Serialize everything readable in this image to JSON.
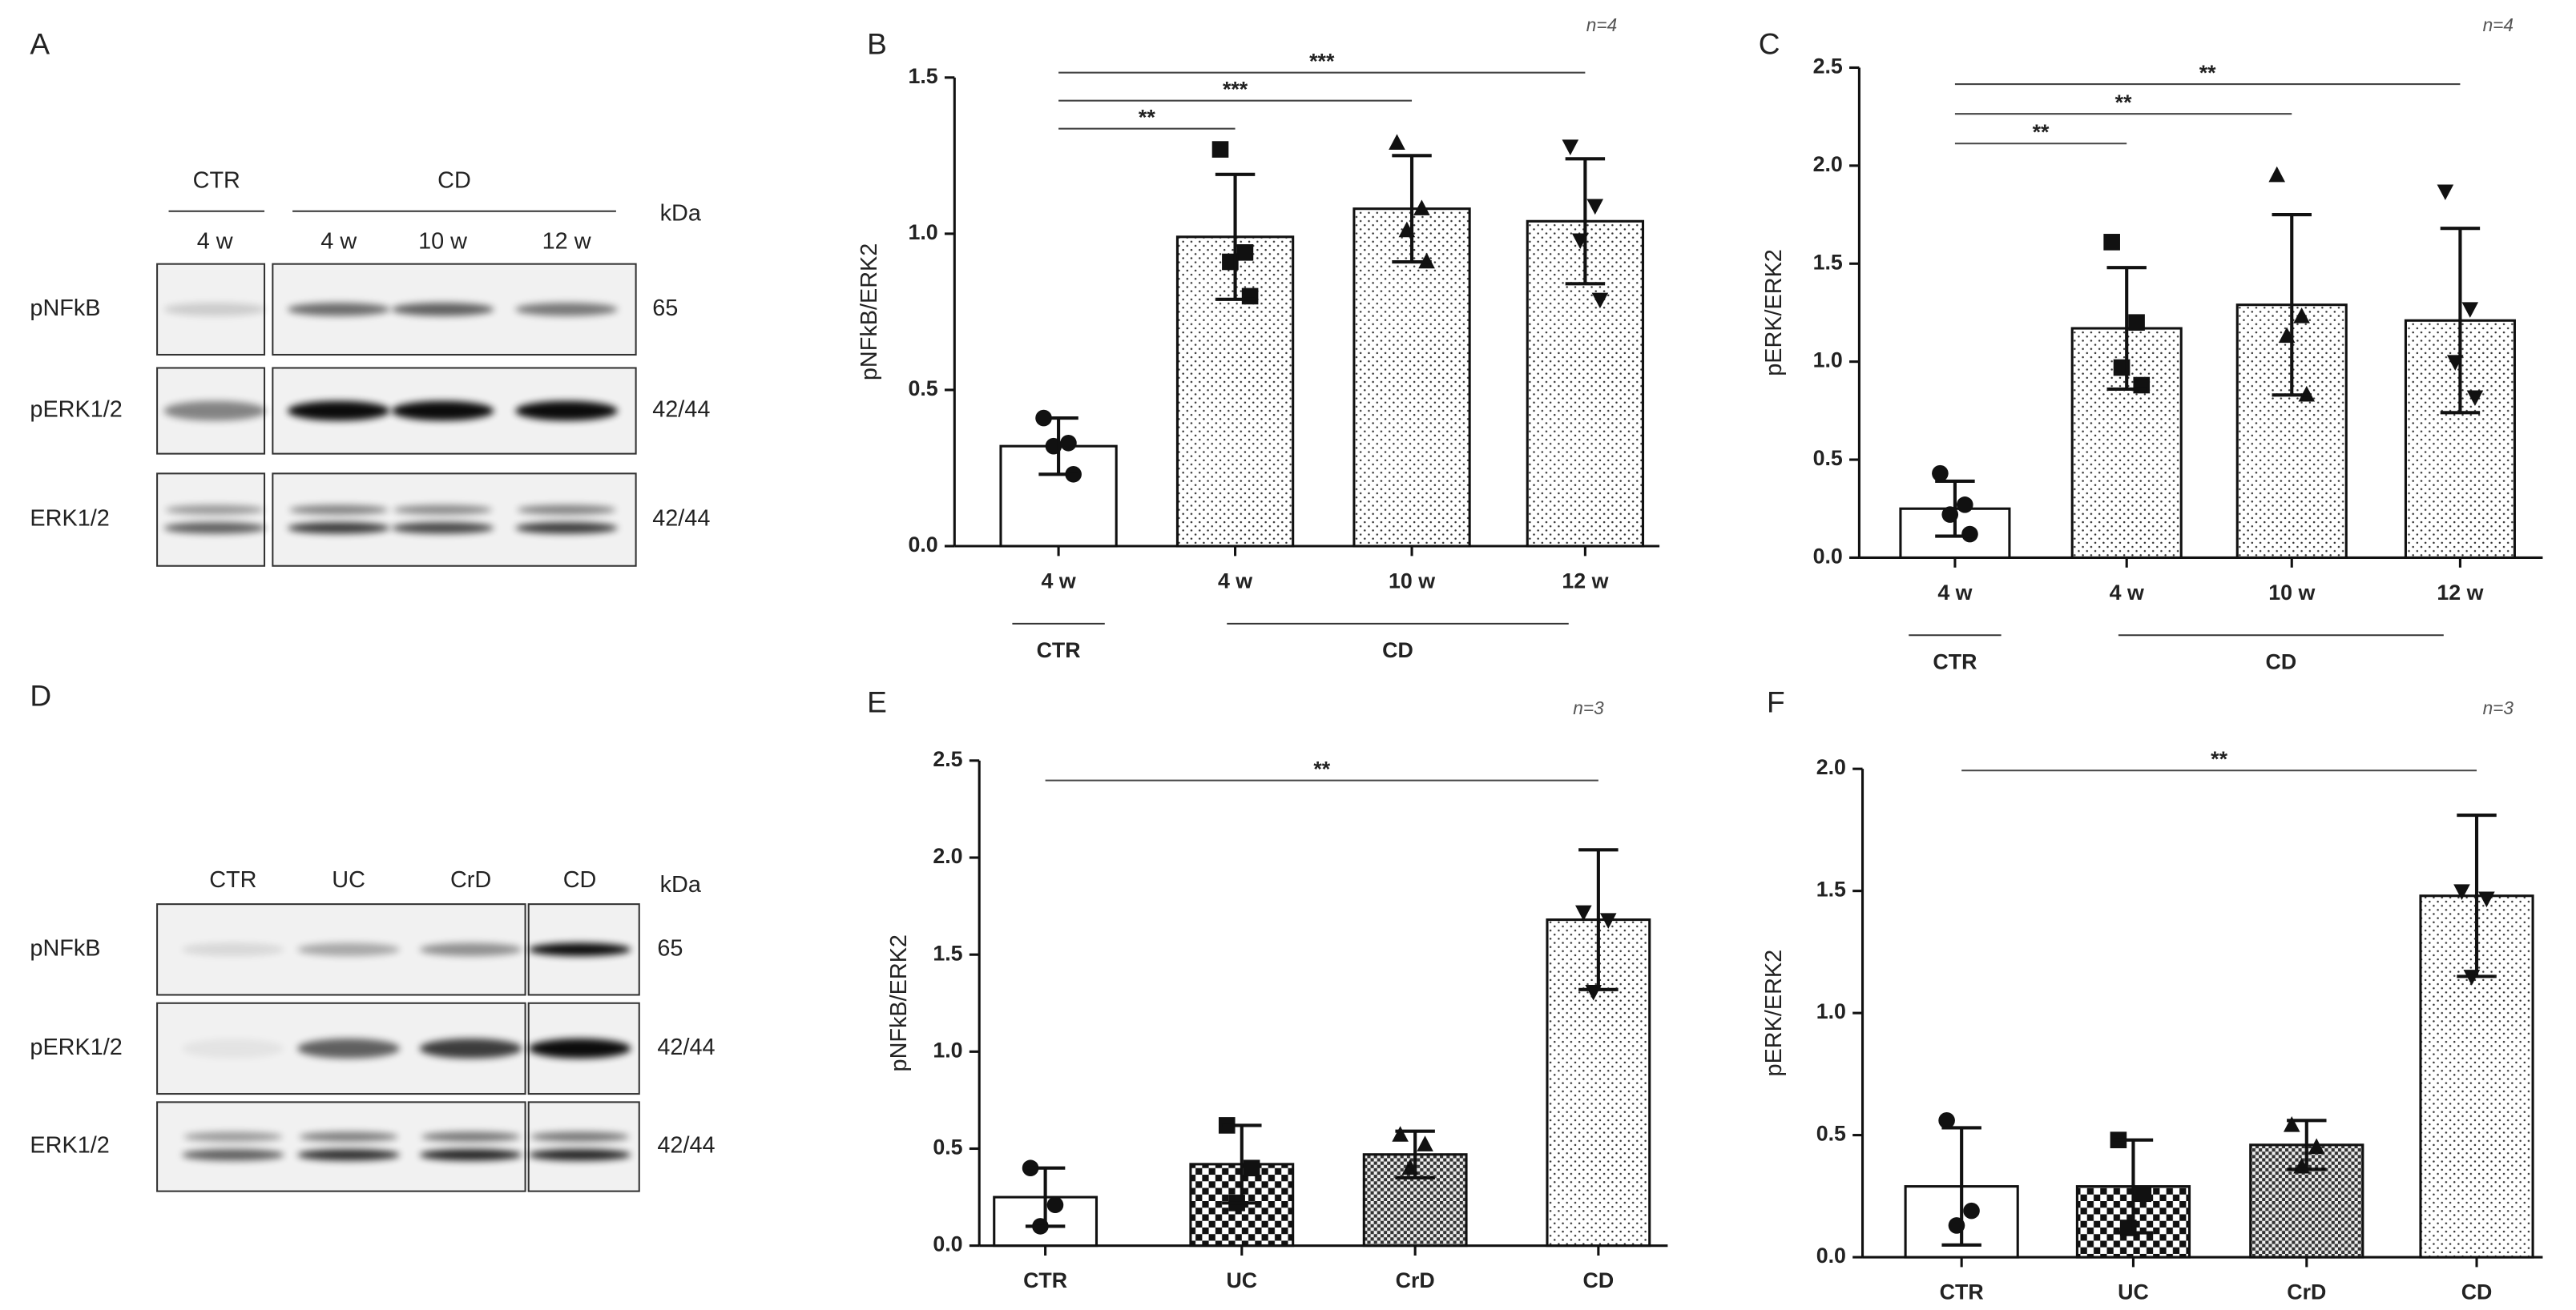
{
  "blots": [
    {
      "panel": "A",
      "lanes": [
        "4 w",
        "4 w",
        "10 w",
        "12 w"
      ],
      "groups": [
        {
          "label": "CTR",
          "from": 0,
          "to": 0
        },
        {
          "label": "CD",
          "from": 1,
          "to": 3
        }
      ],
      "unit": "kDa",
      "rows": [
        {
          "label": "pNFkB",
          "kda": "65"
        },
        {
          "label": "pERK1/2",
          "kda": "42/44"
        },
        {
          "label": "ERK1/2",
          "kda": "42/44"
        }
      ]
    },
    {
      "panel": "D",
      "lanes": [
        "CTR",
        "UC",
        "CrD",
        "CD"
      ],
      "unit": "kDa",
      "rows": [
        {
          "label": "pNFkB",
          "kda": "65"
        },
        {
          "label": "pERK1/2",
          "kda": "42/44"
        },
        {
          "label": "ERK1/2",
          "kda": "42/44"
        }
      ]
    }
  ],
  "chart_data": [
    {
      "type": "bar",
      "panel": "B",
      "note": "n=4",
      "ylabel": "pNFkB/ERK2",
      "categories": [
        "4 w",
        "4 w",
        "10 w",
        "12 w"
      ],
      "groups": [
        {
          "label": "CTR",
          "from": 0,
          "to": 0
        },
        {
          "label": "CD",
          "from": 1,
          "to": 3
        }
      ],
      "values": [
        0.32,
        0.99,
        1.08,
        1.04
      ],
      "errors": [
        0.09,
        0.2,
        0.17,
        0.2
      ],
      "points": [
        [
          0.41,
          0.33,
          0.32,
          0.23
        ],
        [
          1.27,
          0.94,
          0.91,
          0.8
        ],
        [
          1.29,
          1.08,
          1.01,
          0.91
        ],
        [
          1.28,
          1.09,
          0.98,
          0.79
        ]
      ],
      "patterns": [
        "none",
        "dots",
        "dots",
        "dots"
      ],
      "markers": [
        "circle",
        "square",
        "triangle",
        "triangle-down"
      ],
      "ylim": [
        0,
        1.5
      ],
      "yticks": [
        {
          "value": 0,
          "label": "0.0"
        },
        0.5,
        {
          "value": 1,
          "label": "1.0"
        },
        1.5
      ],
      "annotations": [
        {
          "label": "**",
          "from": 0,
          "to": 1
        },
        {
          "label": "***",
          "from": 0,
          "to": 2
        },
        {
          "label": "***",
          "from": 0,
          "to": 3
        }
      ]
    },
    {
      "type": "bar",
      "panel": "C",
      "note": "n=4",
      "ylabel": "pERK/ERK2",
      "categories": [
        "4 w",
        "4 w",
        "10 w",
        "12 w"
      ],
      "groups": [
        {
          "label": "CTR",
          "from": 0,
          "to": 0
        },
        {
          "label": "CD",
          "from": 1,
          "to": 3
        }
      ],
      "values": [
        0.25,
        1.17,
        1.29,
        1.21
      ],
      "errors": [
        0.14,
        0.31,
        0.46,
        0.47
      ],
      "points": [
        [
          0.43,
          0.27,
          0.22,
          0.12
        ],
        [
          1.61,
          1.2,
          0.97,
          0.88
        ],
        [
          1.95,
          1.23,
          1.13,
          0.83
        ],
        [
          1.87,
          1.27,
          1.0,
          0.82
        ]
      ],
      "patterns": [
        "none",
        "dots",
        "dots",
        "dots"
      ],
      "markers": [
        "circle",
        "square",
        "triangle",
        "triangle-down"
      ],
      "ylim": [
        0,
        2.5
      ],
      "yticks": [
        {
          "value": 0,
          "label": "0.0"
        },
        0.5,
        {
          "value": 1,
          "label": "1.0"
        },
        1.5,
        {
          "value": 2,
          "label": "2.0"
        },
        2.5
      ],
      "annotations": [
        {
          "label": "**",
          "from": 0,
          "to": 1
        },
        {
          "label": "**",
          "from": 0,
          "to": 2
        },
        {
          "label": "**",
          "from": 0,
          "to": 3
        }
      ]
    },
    {
      "type": "bar",
      "panel": "E",
      "note": "n=3",
      "ylabel": "pNFkB/ERK2",
      "categories": [
        "CTR",
        "UC",
        "CrD",
        "CD"
      ],
      "values": [
        0.25,
        0.42,
        0.47,
        1.68
      ],
      "errors": [
        0.15,
        0.2,
        0.12,
        0.36
      ],
      "points": [
        [
          0.4,
          0.21,
          0.1
        ],
        [
          0.62,
          0.4,
          0.22
        ],
        [
          0.57,
          0.52,
          0.4
        ],
        [
          1.72,
          1.68,
          1.31
        ]
      ],
      "patterns": [
        "none",
        "checker",
        "dense-checker",
        "dots"
      ],
      "markers": [
        "circle",
        "square",
        "triangle",
        "triangle-down"
      ],
      "ylim": [
        0,
        2.5
      ],
      "yticks": [
        {
          "value": 0,
          "label": "0.0"
        },
        0.5,
        {
          "value": 1,
          "label": "1.0"
        },
        1.5,
        {
          "value": 2,
          "label": "2.0"
        },
        2.5
      ],
      "annotations": [
        {
          "label": "**",
          "from": 0,
          "to": 3
        }
      ]
    },
    {
      "type": "bar",
      "panel": "F",
      "note": "n=3",
      "ylabel": "pERK/ERK2",
      "categories": [
        "CTR",
        "UC",
        "CrD",
        "CD"
      ],
      "values": [
        0.29,
        0.29,
        0.46,
        1.48
      ],
      "errors": [
        0.24,
        0.19,
        0.1,
        0.33
      ],
      "points": [
        [
          0.56,
          0.19,
          0.13
        ],
        [
          0.48,
          0.26,
          0.12
        ],
        [
          0.54,
          0.45,
          0.37
        ],
        [
          1.5,
          1.47,
          1.15
        ]
      ],
      "patterns": [
        "none",
        "checker",
        "dense-checker",
        "dots"
      ],
      "markers": [
        "circle",
        "square",
        "triangle",
        "triangle-down"
      ],
      "ylim": [
        0,
        2
      ],
      "yticks": [
        {
          "value": 0,
          "label": "0.0"
        },
        0.5,
        {
          "value": 1,
          "label": "1.0"
        },
        1.5,
        {
          "value": 2,
          "label": "2.0"
        }
      ],
      "annotations": [
        {
          "label": "**",
          "from": 0,
          "to": 3
        }
      ]
    }
  ]
}
